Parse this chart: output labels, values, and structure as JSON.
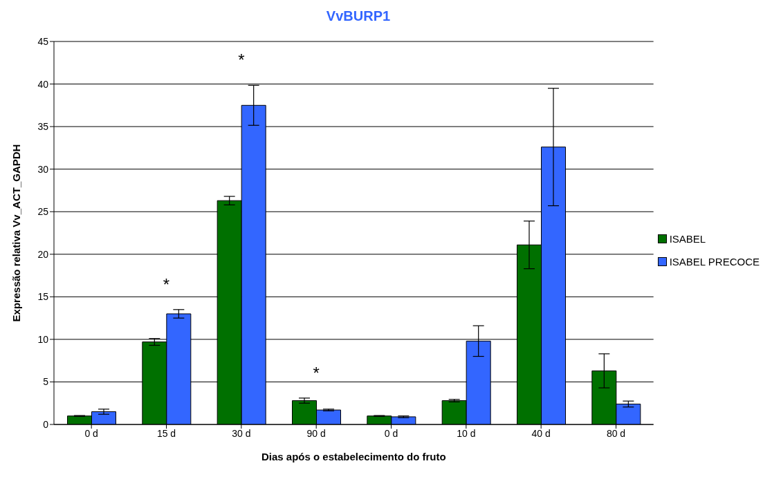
{
  "chart_data": {
    "type": "bar",
    "title": "VvBURP1",
    "xlabel": "Dias após o estabelecimento do fruto",
    "ylabel": "Expressão relativa Vv_ACT_GAPDH",
    "categories": [
      "0 d",
      "15 d",
      "30 d",
      "90 d",
      "0 d",
      "10 d",
      "40 d",
      "80 d"
    ],
    "series": [
      {
        "name": "ISABEL",
        "color": "#007000",
        "values": [
          1.0,
          9.7,
          26.3,
          2.8,
          1.0,
          2.8,
          21.1,
          6.3
        ],
        "errors": [
          0.05,
          0.4,
          0.5,
          0.3,
          0.05,
          0.15,
          2.8,
          2.0
        ]
      },
      {
        "name": "ISABEL PRECOCE",
        "color": "#3366ff",
        "values": [
          1.5,
          13.0,
          37.5,
          1.7,
          0.9,
          9.8,
          32.6,
          2.4
        ],
        "errors": [
          0.3,
          0.5,
          2.35,
          0.1,
          0.1,
          1.8,
          6.9,
          0.35
        ]
      }
    ],
    "ylim": [
      0,
      45
    ],
    "yticks": [
      0,
      5,
      10,
      15,
      20,
      25,
      30,
      35,
      40,
      45
    ],
    "grid": "y",
    "legend": "right",
    "annotations": [
      "*",
      "*",
      "*"
    ]
  }
}
